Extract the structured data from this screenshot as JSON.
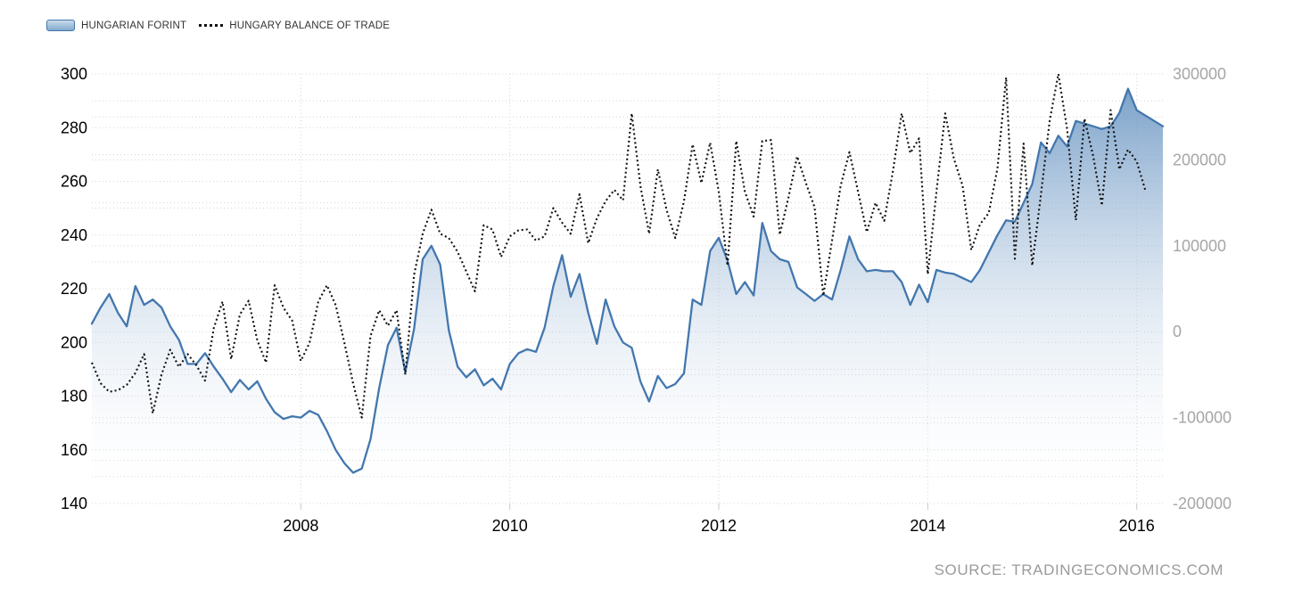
{
  "page": {
    "background": "#ffffff"
  },
  "legend": {
    "items": [
      {
        "label": "HUNGARIAN FORINT",
        "marker": "area-swatch"
      },
      {
        "label": "HUNGARY BALANCE OF TRADE",
        "marker": "dotted-line"
      }
    ]
  },
  "source": {
    "text": "SOURCE: TRADINGECONOMICS.COM"
  },
  "chart_data": {
    "type": "area+line",
    "title": "",
    "x_start": {
      "year": 2006,
      "month": 1
    },
    "x_ticks": [
      2008,
      2010,
      2012,
      2014,
      2016
    ],
    "grid": "dotted",
    "legend_position": "top-left",
    "left_axis": {
      "series": "HUNGARIAN FORINT",
      "min": 140,
      "max": 300,
      "label_step": 20,
      "grid_step": 10,
      "tick_labels": [
        "140",
        "160",
        "180",
        "200",
        "220",
        "240",
        "260",
        "280",
        "300"
      ],
      "label_color": "#000000"
    },
    "right_axis": {
      "series": "HUNGARY BALANCE OF TRADE",
      "min": -200000,
      "max": 300000,
      "label_step": 100000,
      "grid_step": 50000,
      "tick_labels": [
        "-200000",
        "-100000",
        "0",
        "100000",
        "200000",
        "300000"
      ],
      "label_color": "#a6a6a6"
    },
    "series": [
      {
        "name": "HUNGARIAN FORINT",
        "type": "area",
        "axis": "left",
        "line_color": "#4377ae",
        "fill_color": "#6592c1",
        "monthly_from": "2006-01",
        "values": [
          207,
          213,
          218,
          211,
          206,
          221,
          214,
          216,
          213,
          206,
          201,
          192,
          192,
          196,
          191,
          186.5,
          181.5,
          186,
          182.5,
          185.5,
          179,
          174,
          171.5,
          172.5,
          172,
          174.5,
          173,
          167,
          160,
          155,
          151.5,
          153,
          164,
          183,
          199,
          205.5,
          189,
          205,
          231,
          236,
          229,
          204.5,
          191,
          187,
          190,
          184,
          186.5,
          182.5,
          192,
          196,
          197.5,
          196.5,
          205.5,
          221,
          232.5,
          217,
          225.5,
          211,
          199.5,
          216,
          206,
          200,
          198,
          185.5,
          178,
          187.5,
          183,
          184.5,
          188.5,
          216,
          214,
          234,
          239,
          230.5,
          218,
          222.5,
          217.5,
          244.5,
          234,
          231,
          230,
          220.5,
          218,
          215.5,
          218,
          216,
          227,
          239.5,
          231,
          226.5,
          227,
          226.5,
          226.5,
          222.5,
          214,
          221.5,
          215,
          227,
          226,
          225.5,
          224,
          222.5,
          227,
          233.5,
          240,
          245.5,
          245,
          252,
          259,
          274.5,
          270.5,
          277,
          273,
          282.5,
          281.5,
          280.5,
          279.5,
          280.5,
          285.5,
          294.5,
          286.5,
          284.5,
          282.5,
          280.5
        ]
      },
      {
        "name": "HUNGARY BALANCE OF TRADE",
        "type": "dotted-line",
        "axis": "right",
        "line_color": "#111111",
        "monthly_from": "2006-01",
        "values": [
          -36000,
          -60000,
          -70000,
          -68000,
          -62000,
          -48000,
          -26000,
          -95000,
          -50000,
          -21000,
          -41000,
          -26000,
          -39000,
          -57000,
          4000,
          35000,
          -32000,
          20000,
          36000,
          -10000,
          -36000,
          54000,
          28000,
          13000,
          -34000,
          -13000,
          35000,
          54000,
          31000,
          -13000,
          -60000,
          -100000,
          -5000,
          25000,
          7000,
          25000,
          -50000,
          66000,
          114000,
          142000,
          114000,
          109000,
          93000,
          70000,
          47000,
          124000,
          119000,
          87000,
          111000,
          118000,
          119000,
          106000,
          111000,
          144000,
          127000,
          114000,
          160000,
          103000,
          132000,
          152000,
          165000,
          153000,
          254000,
          170000,
          114000,
          189000,
          142000,
          109000,
          152000,
          218000,
          173000,
          220000,
          163000,
          77000,
          222000,
          163000,
          134000,
          222000,
          223000,
          113000,
          156000,
          204000,
          173000,
          145000,
          42000,
          106000,
          170000,
          209000,
          163000,
          116000,
          150000,
          129000,
          187000,
          254000,
          208000,
          225000,
          67000,
          163000,
          254000,
          201000,
          170000,
          95000,
          125000,
          138000,
          190000,
          296000,
          85000,
          219000,
          77000,
          160000,
          246000,
          300000,
          236000,
          130000,
          248000,
          204000,
          147000,
          258000,
          189000,
          212000,
          198000,
          164000
        ]
      }
    ],
    "colors": {
      "gridline": "#d4d4d4",
      "axis_tick": "#c9c9c9",
      "x_label": "#000000"
    }
  }
}
